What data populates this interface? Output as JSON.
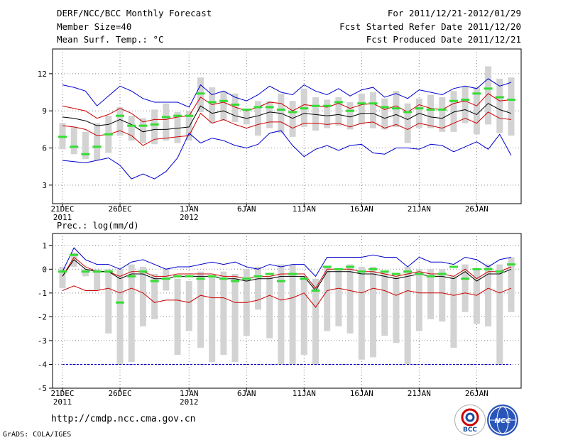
{
  "header": {
    "title": "DERF/NCC/BCC Monthly Forecast",
    "member_size": "Member Size=40",
    "variable1": "Mean Surf. Temp.: °C",
    "period": "For 2011/12/21-2012/01/29",
    "fcst_started": "Fcst Started Refer Date 2011/12/20",
    "fcst_produced": "Fcst Produced Date 2011/12/21"
  },
  "footer": {
    "url": "http://cmdp.ncc.cma.gov.cn",
    "grads_credit": "GrADS: COLA/IGES",
    "logo_bcc": "BCC",
    "logo_ncc": "NCC"
  },
  "chart_data": [
    {
      "type": "box",
      "title": "Mean Surf. Temp.: °C",
      "n_days": 40,
      "ylim": [
        1.5,
        14
      ],
      "yticks": [
        3,
        6,
        9,
        12
      ],
      "ytick_labels": [
        "3",
        "6",
        "9",
        "12"
      ],
      "xtick_labels": [
        {
          "day": 0,
          "label": "21DEC",
          "sub": "2011"
        },
        {
          "day": 5,
          "label": "26DEC",
          "sub": ""
        },
        {
          "day": 11,
          "label": "1JAN",
          "sub": "2012"
        },
        {
          "day": 16,
          "label": "6JAN",
          "sub": ""
        },
        {
          "day": 21,
          "label": "11JAN",
          "sub": ""
        },
        {
          "day": 26,
          "label": "16JAN",
          "sub": ""
        },
        {
          "day": 31,
          "label": "21JAN",
          "sub": ""
        },
        {
          "day": 36,
          "label": "26JAN",
          "sub": ""
        }
      ],
      "series": [
        {
          "name": "max",
          "color": "#0000cc",
          "values": [
            11.1,
            10.9,
            10.6,
            9.4,
            10.2,
            11.0,
            10.6,
            10.0,
            9.7,
            9.7,
            9.7,
            9.3,
            11.1,
            10.3,
            10.6,
            10.1,
            9.8,
            10.3,
            11.0,
            10.5,
            10.3,
            11.1,
            10.6,
            10.3,
            10.8,
            10.2,
            10.7,
            10.9,
            10.1,
            10.4,
            10.0,
            10.7,
            10.5,
            10.3,
            10.8,
            11.0,
            10.8,
            11.6,
            11.0,
            11.3
          ]
        },
        {
          "name": "upper",
          "color": "#cc0000",
          "values": [
            9.4,
            9.2,
            9.0,
            8.4,
            8.7,
            9.2,
            8.8,
            8.1,
            8.3,
            8.3,
            8.5,
            8.6,
            10.1,
            9.5,
            9.7,
            9.3,
            9.0,
            9.3,
            9.7,
            9.6,
            9.0,
            9.5,
            9.4,
            9.3,
            9.6,
            9.2,
            9.5,
            9.6,
            9.1,
            9.4,
            8.9,
            9.5,
            9.2,
            9.1,
            9.6,
            9.8,
            9.4,
            10.4,
            9.8,
            9.9
          ]
        },
        {
          "name": "median",
          "color": "#000000",
          "values": [
            8.5,
            8.4,
            8.2,
            7.8,
            7.9,
            8.3,
            7.9,
            7.3,
            7.5,
            7.5,
            7.6,
            7.7,
            9.4,
            8.8,
            9.0,
            8.6,
            8.4,
            8.6,
            8.9,
            8.8,
            8.4,
            8.8,
            8.7,
            8.6,
            8.7,
            8.5,
            8.8,
            8.8,
            8.4,
            8.7,
            8.3,
            8.8,
            8.5,
            8.4,
            8.9,
            9.1,
            8.7,
            9.6,
            9.1,
            8.8
          ]
        },
        {
          "name": "lower",
          "color": "#cc0000",
          "values": [
            7.8,
            7.7,
            7.5,
            7.0,
            7.1,
            7.4,
            7.0,
            6.2,
            6.7,
            6.8,
            6.9,
            7.0,
            8.8,
            8.0,
            8.3,
            7.9,
            7.6,
            7.9,
            8.1,
            8.1,
            7.6,
            8.0,
            8.0,
            7.9,
            8.0,
            7.7,
            8.0,
            8.1,
            7.6,
            7.9,
            7.5,
            8.0,
            7.8,
            7.6,
            8.0,
            8.4,
            8.0,
            8.9,
            8.4,
            8.3
          ]
        },
        {
          "name": "min",
          "color": "#0000cc",
          "values": [
            5.0,
            4.9,
            4.8,
            5.0,
            5.2,
            4.6,
            3.5,
            3.9,
            3.5,
            4.1,
            5.2,
            7.2,
            6.4,
            6.8,
            6.6,
            6.2,
            6.0,
            6.3,
            7.2,
            7.4,
            6.2,
            5.3,
            5.9,
            6.2,
            5.8,
            6.2,
            6.3,
            5.6,
            5.5,
            6.0,
            6.0,
            5.9,
            6.3,
            6.2,
            5.7,
            6.1,
            6.5,
            5.9,
            7.1,
            5.4
          ]
        }
      ],
      "boxes_low": [
        5.9,
        5.5,
        5.1,
        5.0,
        5.6,
        7.0,
        6.6,
        6.4,
        6.3,
        6.6,
        6.4,
        6.6,
        8.9,
        8.0,
        8.2,
        8.1,
        7.9,
        7.0,
        7.6,
        7.2,
        6.9,
        7.7,
        7.4,
        7.6,
        7.8,
        7.5,
        7.9,
        7.6,
        7.5,
        7.7,
        6.4,
        7.6,
        7.6,
        7.3,
        7.3,
        8.0,
        7.1,
        7.9,
        7.2,
        7.0
      ],
      "boxes_high": [
        8.0,
        7.7,
        7.3,
        8.0,
        8.6,
        9.3,
        8.6,
        8.4,
        9.1,
        9.6,
        8.9,
        9.0,
        11.7,
        10.9,
        10.6,
        10.4,
        9.1,
        9.8,
        9.8,
        10.4,
        9.8,
        10.8,
        10.1,
        9.9,
        10.1,
        9.7,
        10.4,
        10.5,
        10.0,
        10.6,
        9.6,
        10.0,
        10.3,
        10.1,
        10.6,
        11.0,
        10.9,
        12.6,
        11.6,
        11.7
      ],
      "observed": [
        6.9,
        6.1,
        5.5,
        6.1,
        7.1,
        8.6,
        7.8,
        7.8,
        7.9,
        8.5,
        8.6,
        8.6,
        10.4,
        9.7,
        9.8,
        9.5,
        9.1,
        9.3,
        9.3,
        9.1,
        8.9,
        9.2,
        9.4,
        9.4,
        9.7,
        9.0,
        9.6,
        9.6,
        9.3,
        9.2,
        8.9,
        9.2,
        9.1,
        9.1,
        9.8,
        9.9,
        10.4,
        10.8,
        10.1,
        9.9
      ]
    },
    {
      "type": "box",
      "title": "Prec.: log(mm/d)",
      "n_days": 40,
      "ylim": [
        -5,
        1.5
      ],
      "yticks": [
        -5,
        -4,
        -3,
        -2,
        -1,
        0,
        1
      ],
      "ytick_labels": [
        "-5",
        "-4",
        "-3",
        "-2",
        "-1",
        "0",
        "1"
      ],
      "xtick_labels": [
        {
          "day": 0,
          "label": "21DEC",
          "sub": "2011"
        },
        {
          "day": 5,
          "label": "26DEC",
          "sub": ""
        },
        {
          "day": 11,
          "label": "1JAN",
          "sub": "2012"
        },
        {
          "day": 16,
          "label": "6JAN",
          "sub": ""
        },
        {
          "day": 21,
          "label": "11JAN",
          "sub": ""
        },
        {
          "day": 26,
          "label": "16JAN",
          "sub": ""
        },
        {
          "day": 31,
          "label": "21JAN",
          "sub": ""
        },
        {
          "day": 36,
          "label": "26JAN",
          "sub": ""
        }
      ],
      "series": [
        {
          "name": "max",
          "color": "#0000cc",
          "values": [
            -0.1,
            0.9,
            0.4,
            0.2,
            0.2,
            0.0,
            0.3,
            0.4,
            0.2,
            0.0,
            0.1,
            0.1,
            0.2,
            0.3,
            0.2,
            0.3,
            0.1,
            0.0,
            0.2,
            0.1,
            0.2,
            0.2,
            -0.3,
            0.5,
            0.5,
            0.5,
            0.5,
            0.6,
            0.5,
            0.5,
            0.1,
            0.5,
            0.3,
            0.3,
            0.2,
            0.5,
            0.4,
            0.1,
            0.4,
            0.5
          ]
        },
        {
          "name": "upper",
          "color": "#cc0000",
          "values": [
            -0.3,
            0.5,
            0.1,
            -0.1,
            -0.1,
            -0.3,
            -0.1,
            -0.1,
            -0.3,
            -0.3,
            -0.2,
            -0.2,
            -0.2,
            -0.2,
            -0.3,
            -0.3,
            -0.4,
            -0.3,
            -0.3,
            -0.2,
            -0.2,
            -0.2,
            -0.8,
            0.0,
            0.0,
            0.0,
            -0.1,
            -0.1,
            -0.2,
            -0.3,
            -0.2,
            -0.1,
            -0.2,
            -0.2,
            -0.3,
            0.0,
            -0.4,
            -0.1,
            -0.1,
            0.1
          ]
        },
        {
          "name": "median",
          "color": "#000000",
          "values": [
            -0.3,
            0.4,
            0.0,
            -0.1,
            -0.1,
            -0.4,
            -0.2,
            -0.2,
            -0.4,
            -0.4,
            -0.3,
            -0.3,
            -0.3,
            -0.3,
            -0.4,
            -0.4,
            -0.5,
            -0.4,
            -0.4,
            -0.3,
            -0.3,
            -0.3,
            -0.9,
            -0.1,
            -0.1,
            -0.1,
            -0.2,
            -0.2,
            -0.3,
            -0.4,
            -0.3,
            -0.2,
            -0.3,
            -0.3,
            -0.4,
            -0.1,
            -0.5,
            -0.2,
            -0.2,
            0.0
          ]
        },
        {
          "name": "lower",
          "color": "#cc0000",
          "values": [
            -0.9,
            -0.7,
            -0.9,
            -0.9,
            -0.8,
            -1.0,
            -0.8,
            -1.0,
            -1.4,
            -1.3,
            -1.3,
            -1.4,
            -1.1,
            -1.2,
            -1.2,
            -1.4,
            -1.4,
            -1.3,
            -1.1,
            -1.3,
            -1.2,
            -1.0,
            -1.6,
            -0.9,
            -0.8,
            -0.9,
            -1.0,
            -0.8,
            -0.9,
            -1.1,
            -0.9,
            -1.0,
            -1.0,
            -1.0,
            -1.1,
            -1.0,
            -1.1,
            -0.8,
            -1.0,
            -0.8
          ]
        },
        {
          "name": "min_floor",
          "color": "#0000cc",
          "values": [
            -4,
            -4,
            -4,
            -4,
            -4,
            -4,
            -4,
            -4,
            -4,
            -4,
            -4,
            -4,
            -4,
            -4,
            -4,
            -4,
            -4,
            -4,
            -4,
            -4,
            -4,
            -4,
            -4,
            -4,
            -4,
            -4,
            -4,
            -4,
            -4,
            -4,
            -4,
            -4,
            -4,
            -4,
            -4,
            -4,
            -4,
            -4,
            -4,
            -4
          ]
        }
      ],
      "boxes_low": [
        -0.8,
        0.1,
        -0.3,
        -0.9,
        -2.7,
        -4.0,
        -3.9,
        -2.4,
        -2.1,
        -0.9,
        -3.6,
        -2.6,
        -3.3,
        -3.9,
        -3.6,
        -3.9,
        -2.8,
        -1.7,
        -2.9,
        -4.0,
        -4.0,
        -3.6,
        -4.0,
        -2.6,
        -2.4,
        -2.7,
        -3.8,
        -3.7,
        -2.8,
        -3.1,
        -4.0,
        -2.6,
        -2.1,
        -2.2,
        -3.3,
        -1.8,
        -2.3,
        -2.4,
        -4.0,
        -1.8
      ],
      "boxes_high": [
        0.1,
        0.7,
        0.0,
        0.0,
        0.0,
        0.0,
        0.2,
        0.1,
        -0.2,
        0.0,
        -0.4,
        -0.5,
        -0.1,
        -0.3,
        -0.1,
        -0.2,
        0.0,
        0.1,
        -0.3,
        0.2,
        0.2,
        -0.3,
        -0.4,
        0.1,
        0.0,
        0.2,
        0.1,
        0.1,
        -0.1,
        -0.3,
        0.1,
        0.0,
        0.0,
        0.0,
        -0.3,
        0.2,
        0.0,
        0.2,
        0.2,
        0.5
      ],
      "observed": [
        -0.1,
        0.6,
        -0.1,
        -0.1,
        -0.1,
        -1.4,
        -0.3,
        -0.1,
        -0.5,
        -0.4,
        -0.3,
        -0.3,
        -0.4,
        -0.3,
        -0.4,
        -0.5,
        -0.4,
        -0.3,
        -0.2,
        -0.5,
        -0.2,
        -0.4,
        -0.9,
        0.1,
        0.0,
        0.1,
        -0.1,
        0.0,
        -0.1,
        -0.2,
        -0.1,
        -0.2,
        -0.3,
        -0.2,
        0.1,
        -0.4,
        0.0,
        0.0,
        -0.1,
        0.2
      ]
    }
  ]
}
